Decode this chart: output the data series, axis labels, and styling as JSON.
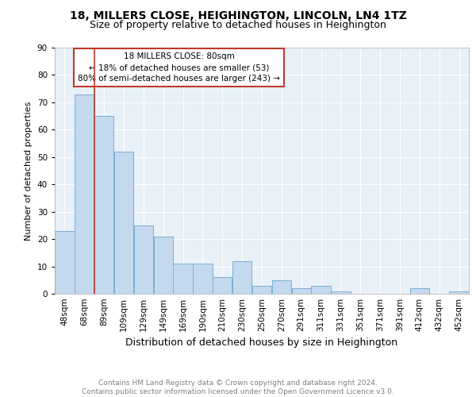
{
  "title1": "18, MILLERS CLOSE, HEIGHINGTON, LINCOLN, LN4 1TZ",
  "title2": "Size of property relative to detached houses in Heighington",
  "xlabel": "Distribution of detached houses by size in Heighington",
  "ylabel": "Number of detached properties",
  "categories": [
    "48sqm",
    "68sqm",
    "89sqm",
    "109sqm",
    "129sqm",
    "149sqm",
    "169sqm",
    "190sqm",
    "210sqm",
    "230sqm",
    "250sqm",
    "270sqm",
    "291sqm",
    "311sqm",
    "331sqm",
    "351sqm",
    "371sqm",
    "391sqm",
    "412sqm",
    "432sqm",
    "452sqm"
  ],
  "values": [
    23,
    73,
    65,
    52,
    25,
    21,
    11,
    11,
    6,
    12,
    3,
    5,
    2,
    3,
    1,
    0,
    0,
    0,
    2,
    0,
    1
  ],
  "bar_color": "#c5d9ee",
  "bar_edge_color": "#7aafd4",
  "bar_background": "#e8f0f8",
  "vline_x": 1.5,
  "vline_color": "#c0392b",
  "annotation_text": "18 MILLERS CLOSE: 80sqm\n← 18% of detached houses are smaller (53)\n80% of semi-detached houses are larger (243) →",
  "annotation_box_color": "white",
  "annotation_box_edge_color": "#c0392b",
  "ylim": [
    0,
    90
  ],
  "yticks": [
    0,
    10,
    20,
    30,
    40,
    50,
    60,
    70,
    80,
    90
  ],
  "footer": "Contains HM Land Registry data © Crown copyright and database right 2024.\nContains public sector information licensed under the Open Government Licence v3.0.",
  "title1_fontsize": 10,
  "title2_fontsize": 9,
  "xlabel_fontsize": 9,
  "ylabel_fontsize": 8,
  "tick_fontsize": 7.5,
  "annotation_fontsize": 7.5,
  "footer_fontsize": 6.5
}
